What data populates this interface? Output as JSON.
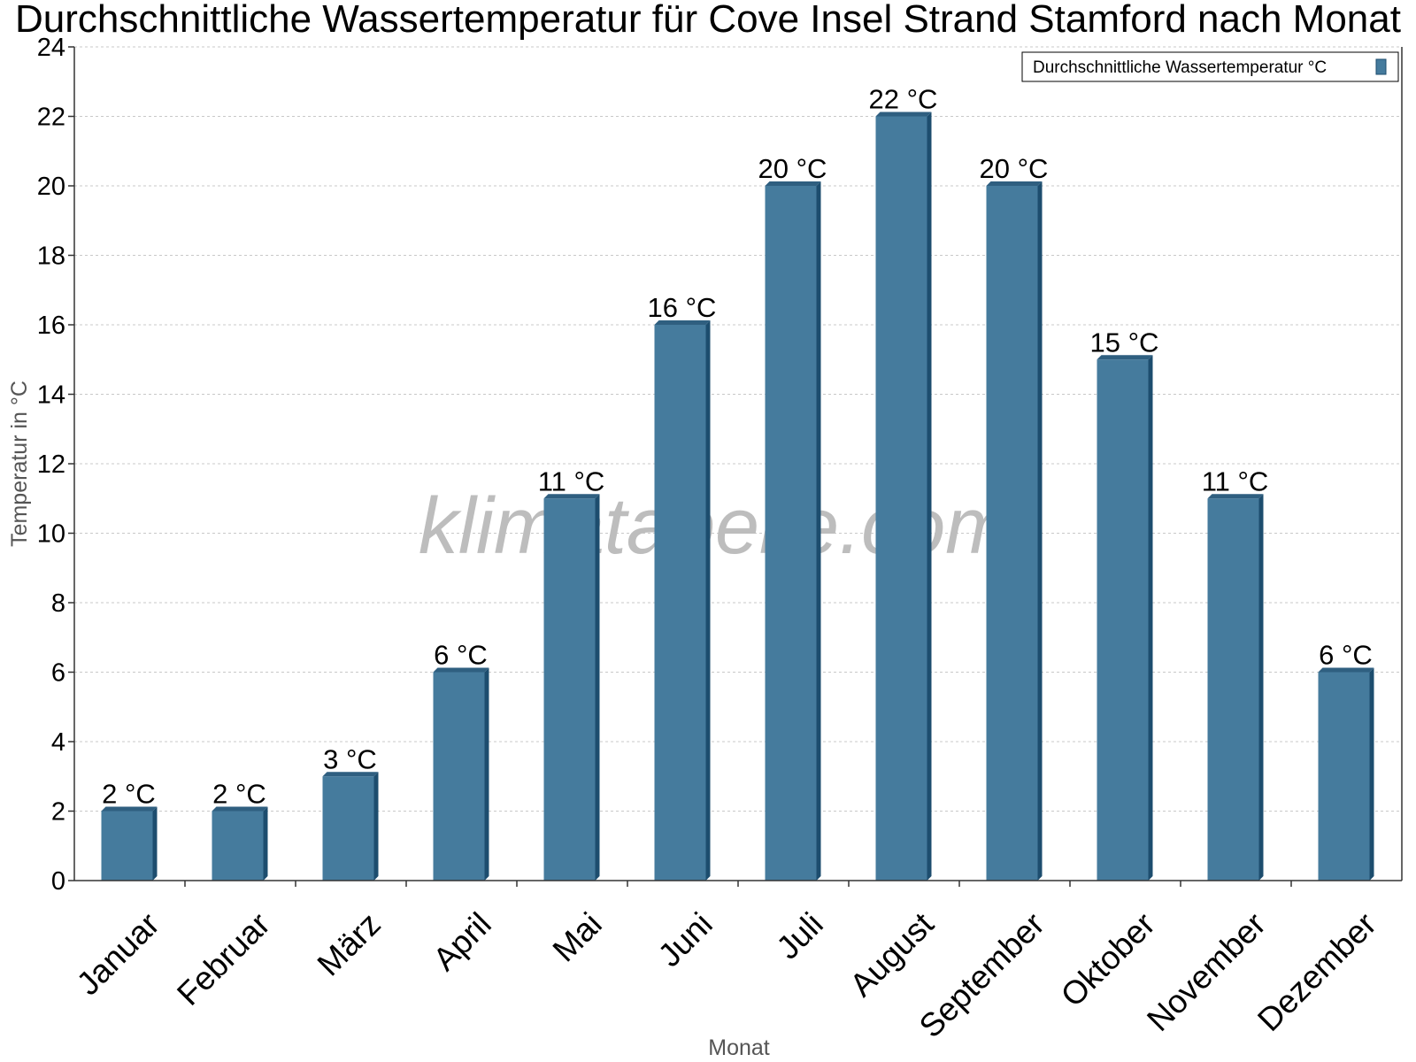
{
  "title": "Durchschnittliche Wassertemperatur für Cove Insel Strand Stamford nach Monat",
  "watermark": "klimatabelle.com",
  "colors": {
    "bar_front": "#457b9d",
    "bar_top": "#2f5f80",
    "bar_side": "#1d4d6e",
    "grid": "#c8c8c8",
    "axis": "#333333"
  },
  "chart_data": {
    "type": "bar",
    "title": "Durchschnittliche Wassertemperatur für Cove Insel Strand Stamford nach Monat",
    "xlabel": "Monat",
    "ylabel": "Temperatur in °C",
    "ylim": [
      0,
      24
    ],
    "y_ticks": [
      0,
      2,
      4,
      6,
      8,
      10,
      12,
      14,
      16,
      18,
      20,
      22,
      24
    ],
    "grid": true,
    "legend_position": "top-right",
    "categories": [
      "Januar",
      "Februar",
      "März",
      "April",
      "Mai",
      "Juni",
      "Juli",
      "August",
      "September",
      "Oktober",
      "November",
      "Dezember"
    ],
    "series": [
      {
        "name": "Durchschnittliche Wassertemperatur °C",
        "values": [
          2,
          2,
          3,
          6,
          11,
          16,
          20,
          22,
          20,
          15,
          11,
          6
        ],
        "data_labels": [
          "2 °C",
          "2 °C",
          "3 °C",
          "6 °C",
          "11 °C",
          "16 °C",
          "20 °C",
          "22 °C",
          "20 °C",
          "15 °C",
          "11 °C",
          "6 °C"
        ]
      }
    ]
  }
}
